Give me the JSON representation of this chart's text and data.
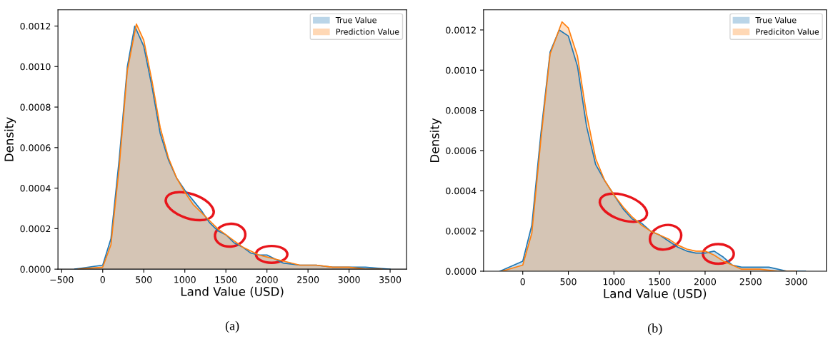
{
  "chart_data": [
    {
      "type": "area",
      "xlabel": "Land Value (USD)",
      "ylabel": "Density",
      "xlim": [
        -545,
        3700
      ],
      "xticks": [
        -500,
        0,
        500,
        1000,
        1500,
        2000,
        2500,
        3000,
        3500
      ],
      "ylim": [
        0,
        0.00128
      ],
      "yticks": [
        {
          "value": 0,
          "label": "0.0000"
        },
        {
          "value": 0.0002,
          "label": "0.0002"
        },
        {
          "value": 0.0004,
          "label": "0.0004"
        },
        {
          "value": 0.0006,
          "label": "0.0006"
        },
        {
          "value": 0.0008,
          "label": "0.0008"
        },
        {
          "value": 0.001,
          "label": "0.0010"
        },
        {
          "value": 0.0012,
          "label": "0.0012"
        }
      ],
      "grid": false,
      "legend": "top right",
      "annotations": [
        "(a)"
      ],
      "series": [
        {
          "name": "True Value",
          "color": "#1f77b4",
          "x": [
            -340,
            0,
            100,
            200,
            300,
            390,
            500,
            600,
            700,
            800,
            900,
            1000,
            1100,
            1200,
            1300,
            1400,
            1500,
            1600,
            1700,
            1800,
            1900,
            2000,
            2100,
            2200,
            2400,
            2600,
            2800,
            3000,
            3200,
            3500
          ],
          "values": [
            0,
            2e-05,
            0.00015,
            0.00054,
            0.001,
            0.0012,
            0.0011,
            0.0009,
            0.00067,
            0.00054,
            0.00045,
            0.00039,
            0.00034,
            0.00029,
            0.00023,
            0.00019,
            0.00017,
            0.00013,
            0.00011,
            8e-05,
            7e-05,
            7e-05,
            5e-05,
            3e-05,
            2e-05,
            2e-05,
            1e-05,
            1e-05,
            1e-05,
            0
          ]
        },
        {
          "name": "Prediction Value",
          "color": "#ff7f0e",
          "x": [
            -300,
            0,
            100,
            200,
            300,
            410,
            500,
            600,
            700,
            800,
            900,
            1000,
            1100,
            1200,
            1300,
            1400,
            1500,
            1600,
            1700,
            1800,
            1900,
            2000,
            2100,
            2200,
            2400,
            2600,
            2800,
            3000,
            3200,
            3400
          ],
          "values": [
            0,
            1e-05,
            0.00012,
            0.0005,
            0.00098,
            0.00121,
            0.00113,
            0.00093,
            0.0007,
            0.00055,
            0.00045,
            0.00038,
            0.00032,
            0.00028,
            0.00024,
            0.0002,
            0.00017,
            0.00014,
            0.00011,
            9e-05,
            7e-05,
            6e-05,
            5e-05,
            4e-05,
            2e-05,
            2e-05,
            1e-05,
            1e-05,
            0,
            0
          ]
        }
      ]
    },
    {
      "type": "area",
      "xlabel": "Land Value (USD)",
      "ylabel": "Density",
      "xlim": [
        -430,
        3330
      ],
      "xticks": [
        0,
        500,
        1000,
        1500,
        2000,
        2500,
        3000
      ],
      "ylim": [
        0,
        0.0013
      ],
      "yticks": [
        {
          "value": 0,
          "label": "0.0000"
        },
        {
          "value": 0.0002,
          "label": "0.0002"
        },
        {
          "value": 0.0004,
          "label": "0.0004"
        },
        {
          "value": 0.0006,
          "label": "0.0006"
        },
        {
          "value": 0.0008,
          "label": "0.0008"
        },
        {
          "value": 0.001,
          "label": "0.0010"
        },
        {
          "value": 0.0012,
          "label": "0.0012"
        }
      ],
      "grid": false,
      "legend": "top right",
      "annotations": [
        "(b)"
      ],
      "series": [
        {
          "name": "True Value",
          "color": "#1f77b4",
          "x": [
            -250,
            0,
            100,
            200,
            300,
            400,
            500,
            600,
            700,
            800,
            900,
            1000,
            1100,
            1200,
            1300,
            1400,
            1500,
            1600,
            1700,
            1800,
            1900,
            2000,
            2100,
            2200,
            2300,
            2400,
            2600,
            2700,
            2900,
            3100
          ],
          "values": [
            0,
            5e-05,
            0.00023,
            0.00069,
            0.00109,
            0.0012,
            0.00117,
            0.00102,
            0.00072,
            0.00053,
            0.00045,
            0.00038,
            0.00031,
            0.00026,
            0.00024,
            0.0002,
            0.00018,
            0.00015,
            0.00012,
            0.0001,
            9e-05,
            9e-05,
            0.0001,
            7e-05,
            3e-05,
            2e-05,
            2e-05,
            2e-05,
            0,
            0
          ]
        },
        {
          "name": "Prediciton Value",
          "color": "#ff7f0e",
          "x": [
            -230,
            0,
            100,
            200,
            300,
            430,
            500,
            600,
            700,
            800,
            900,
            1000,
            1100,
            1200,
            1300,
            1400,
            1500,
            1600,
            1700,
            1800,
            1900,
            2000,
            2100,
            2200,
            2300,
            2400,
            2600,
            2800,
            3000
          ],
          "values": [
            0,
            3e-05,
            0.00019,
            0.00066,
            0.00108,
            0.00124,
            0.00121,
            0.00107,
            0.00078,
            0.00056,
            0.00045,
            0.00038,
            0.00032,
            0.00027,
            0.00023,
            0.0002,
            0.00018,
            0.00016,
            0.00013,
            0.00011,
            0.0001,
            0.0001,
            8e-05,
            5e-05,
            3e-05,
            1e-05,
            1e-05,
            0,
            0
          ]
        }
      ]
    }
  ]
}
